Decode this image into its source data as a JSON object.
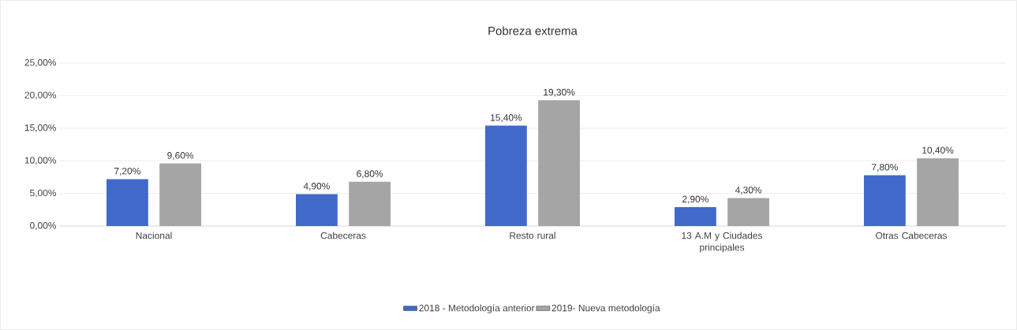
{
  "chart_data": {
    "type": "bar",
    "title": "Pobreza extrema",
    "categories": [
      "Nacional",
      "Cabeceras",
      "Resto rural",
      "13 A.M y Ciudades principales",
      "Otras Cabeceras"
    ],
    "series": [
      {
        "name": "2018 - Metodología anterior",
        "color": "#4169c9",
        "values": [
          7.2,
          4.9,
          15.4,
          2.9,
          7.8
        ],
        "value_labels": [
          "7,20%",
          "4,90%",
          "15,40%",
          "2,90%",
          "7,80%"
        ]
      },
      {
        "name": "2019- Nueva metodología",
        "color": "#a5a5a5",
        "values": [
          9.6,
          6.8,
          19.3,
          4.3,
          10.4
        ],
        "value_labels": [
          "9,60%",
          "6,80%",
          "19,30%",
          "4,30%",
          "10,40%"
        ]
      }
    ],
    "ylim": [
      0,
      25
    ],
    "yticks": [
      {
        "value": 0,
        "label": "0,00%"
      },
      {
        "value": 5,
        "label": "5,00%"
      },
      {
        "value": 10,
        "label": "10,00%"
      },
      {
        "value": 15,
        "label": "15,00%"
      },
      {
        "value": 20,
        "label": "20,00%"
      },
      {
        "value": 25,
        "label": "25,00%"
      }
    ],
    "grid": "y",
    "legend": "bottom"
  }
}
